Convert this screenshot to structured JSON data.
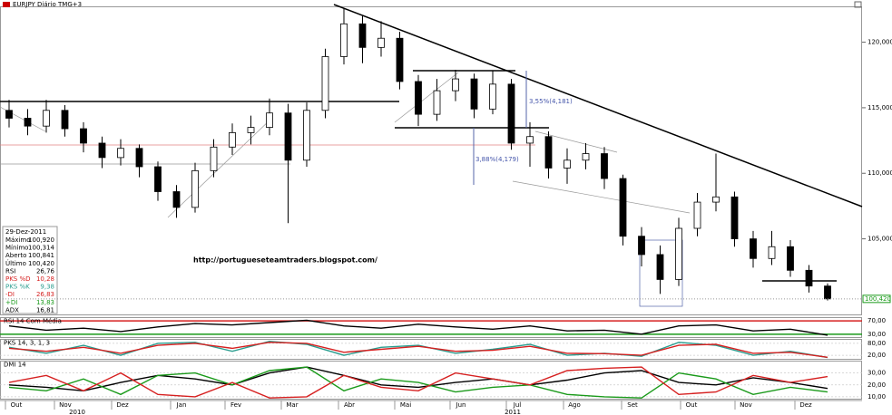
{
  "chart_data": [
    {
      "type": "candlestick",
      "title": "EURJPY Diário TMG+3",
      "open": [
        114.8,
        114.2,
        113.6,
        114.8,
        113.4,
        112.3,
        111.2,
        111.9,
        110.5,
        108.6,
        107.4,
        110.2,
        112.0,
        113.1,
        113.5,
        114.6,
        111.0,
        114.8,
        118.9,
        121.4,
        119.6,
        120.3,
        117.0,
        114.5,
        116.3,
        117.2,
        114.9,
        116.8,
        112.3,
        112.8,
        110.4,
        111.0,
        111.5,
        109.6,
        105.2,
        103.8,
        101.9,
        105.8,
        107.8,
        108.2,
        105.0,
        103.5,
        104.4,
        102.6,
        101.4
      ],
      "high": [
        115.6,
        114.9,
        115.6,
        115.2,
        113.9,
        112.8,
        112.6,
        112.2,
        110.9,
        109.1,
        110.8,
        112.6,
        113.8,
        114.4,
        115.7,
        115.3,
        115.4,
        119.5,
        122.6,
        122.0,
        121.6,
        120.8,
        117.5,
        117.2,
        117.9,
        117.6,
        117.8,
        117.2,
        113.9,
        113.2,
        111.9,
        112.3,
        112.0,
        109.9,
        105.9,
        104.5,
        106.6,
        108.5,
        111.5,
        108.6,
        105.6,
        105.6,
        104.9,
        103.0,
        101.6
      ],
      "low": [
        113.5,
        112.9,
        113.1,
        112.8,
        111.6,
        110.4,
        110.6,
        109.7,
        107.9,
        106.6,
        107.0,
        109.7,
        111.4,
        112.2,
        112.9,
        106.2,
        110.5,
        114.2,
        118.3,
        118.4,
        118.9,
        116.4,
        113.6,
        114.0,
        115.5,
        114.2,
        114.5,
        111.8,
        110.5,
        109.6,
        109.2,
        110.3,
        108.8,
        104.5,
        102.9,
        100.8,
        101.4,
        105.2,
        107.1,
        104.4,
        102.8,
        103.0,
        102.1,
        100.9,
        100.3
      ],
      "close": [
        114.2,
        113.6,
        114.8,
        113.4,
        112.3,
        111.2,
        111.9,
        110.5,
        108.6,
        107.4,
        110.2,
        112.0,
        113.1,
        113.5,
        114.6,
        111.0,
        114.8,
        118.9,
        121.4,
        119.6,
        120.3,
        117.0,
        114.5,
        116.3,
        117.2,
        114.9,
        116.8,
        112.3,
        112.8,
        110.4,
        111.0,
        111.5,
        109.6,
        105.2,
        103.8,
        101.9,
        105.8,
        107.8,
        108.2,
        105.0,
        103.5,
        104.4,
        102.6,
        101.4,
        100.42
      ],
      "up_color": "#ffffff",
      "down_color": "#000000",
      "ylim": [
        99.2,
        122.7
      ],
      "yticks": [
        {
          "value": 105,
          "label": "105,000"
        },
        {
          "value": 110,
          "label": "110,000"
        },
        {
          "value": 115,
          "label": "115,000"
        },
        {
          "value": 120,
          "label": "120,000"
        }
      ],
      "last_price": {
        "value": 100.42,
        "label": "100,420"
      },
      "months": [
        "Out",
        "Nov",
        "Dez",
        "Jan",
        "Fev",
        "Mar",
        "Abr",
        "Mai",
        "Jun",
        "Jul",
        "Ago",
        "Set",
        "Out",
        "Nov",
        "Dez"
      ],
      "years": [
        "2010",
        "2011"
      ],
      "annotations": [
        "3,55%(4,181)",
        "3,88%(4,179)",
        "http://portugueseteamtraders.blogspot.com/"
      ]
    },
    {
      "type": "line",
      "title": "RSI 14 Com Média",
      "ylim": [
        20,
        80
      ],
      "yticks": [
        {
          "value": 30,
          "label": "30,00"
        },
        {
          "value": 70,
          "label": "70,00"
        }
      ],
      "series": [
        {
          "name": "RSI",
          "color": "#000000",
          "values": [
            55,
            42,
            48,
            38,
            52,
            62,
            58,
            65,
            72,
            55,
            48,
            60,
            52,
            45,
            55,
            40,
            42,
            30,
            55,
            58,
            40,
            45,
            27
          ]
        }
      ]
    },
    {
      "type": "line",
      "title": "PKS 14, 3, 1, 3",
      "ylim": [
        0,
        100
      ],
      "yticks": [
        {
          "value": 20,
          "label": "20,00"
        },
        {
          "value": 80,
          "label": "80,00"
        }
      ],
      "series": [
        {
          "name": "PKS %K",
          "color": "#2a9d8f",
          "values": [
            60,
            30,
            70,
            20,
            80,
            85,
            40,
            90,
            75,
            20,
            60,
            70,
            30,
            50,
            75,
            20,
            30,
            15,
            85,
            70,
            20,
            40,
            9
          ]
        },
        {
          "name": "PKS %D",
          "color": "#d62020",
          "values": [
            55,
            40,
            60,
            30,
            70,
            80,
            55,
            85,
            80,
            35,
            50,
            65,
            40,
            45,
            65,
            30,
            28,
            20,
            70,
            75,
            30,
            35,
            10
          ]
        }
      ]
    },
    {
      "type": "line",
      "title": "DMI 14",
      "ylim": [
        8,
        40
      ],
      "yticks": [
        {
          "value": 10,
          "label": "10,00"
        },
        {
          "value": 20,
          "label": "20,00"
        },
        {
          "value": 30,
          "label": "30,00"
        }
      ],
      "series": [
        {
          "name": "ADX",
          "color": "#000000",
          "values": [
            20,
            18,
            15,
            22,
            28,
            25,
            20,
            30,
            35,
            28,
            20,
            18,
            22,
            25,
            20,
            24,
            30,
            32,
            22,
            20,
            26,
            22,
            17
          ]
        },
        {
          "name": "+DI",
          "color": "#1a9a1a",
          "values": [
            18,
            15,
            25,
            12,
            28,
            30,
            20,
            32,
            35,
            15,
            25,
            22,
            14,
            18,
            20,
            12,
            10,
            9,
            30,
            25,
            12,
            18,
            14
          ]
        },
        {
          "name": "-DI",
          "color": "#d62020",
          "values": [
            22,
            28,
            15,
            30,
            12,
            10,
            22,
            9,
            10,
            28,
            18,
            15,
            30,
            25,
            20,
            32,
            34,
            35,
            12,
            14,
            28,
            22,
            27
          ]
        }
      ]
    }
  ],
  "info_box": {
    "date": "29-Dez-2011",
    "rows": [
      {
        "label": "Máximo",
        "value": "100,920"
      },
      {
        "label": "Mínimo",
        "value": "100,314"
      },
      {
        "label": "Aberto",
        "value": "100,841"
      },
      {
        "label": "Último",
        "value": "100,420"
      },
      {
        "label": "RSI",
        "value": "26,76"
      },
      {
        "label": "PKS %D",
        "value": "10,28"
      },
      {
        "label": "PKS %K",
        "value": "9,38"
      },
      {
        "label": "-DI",
        "value": "26,83"
      },
      {
        "label": "+DI",
        "value": "13,83"
      },
      {
        "label": "ADX",
        "value": "16,81"
      }
    ]
  }
}
